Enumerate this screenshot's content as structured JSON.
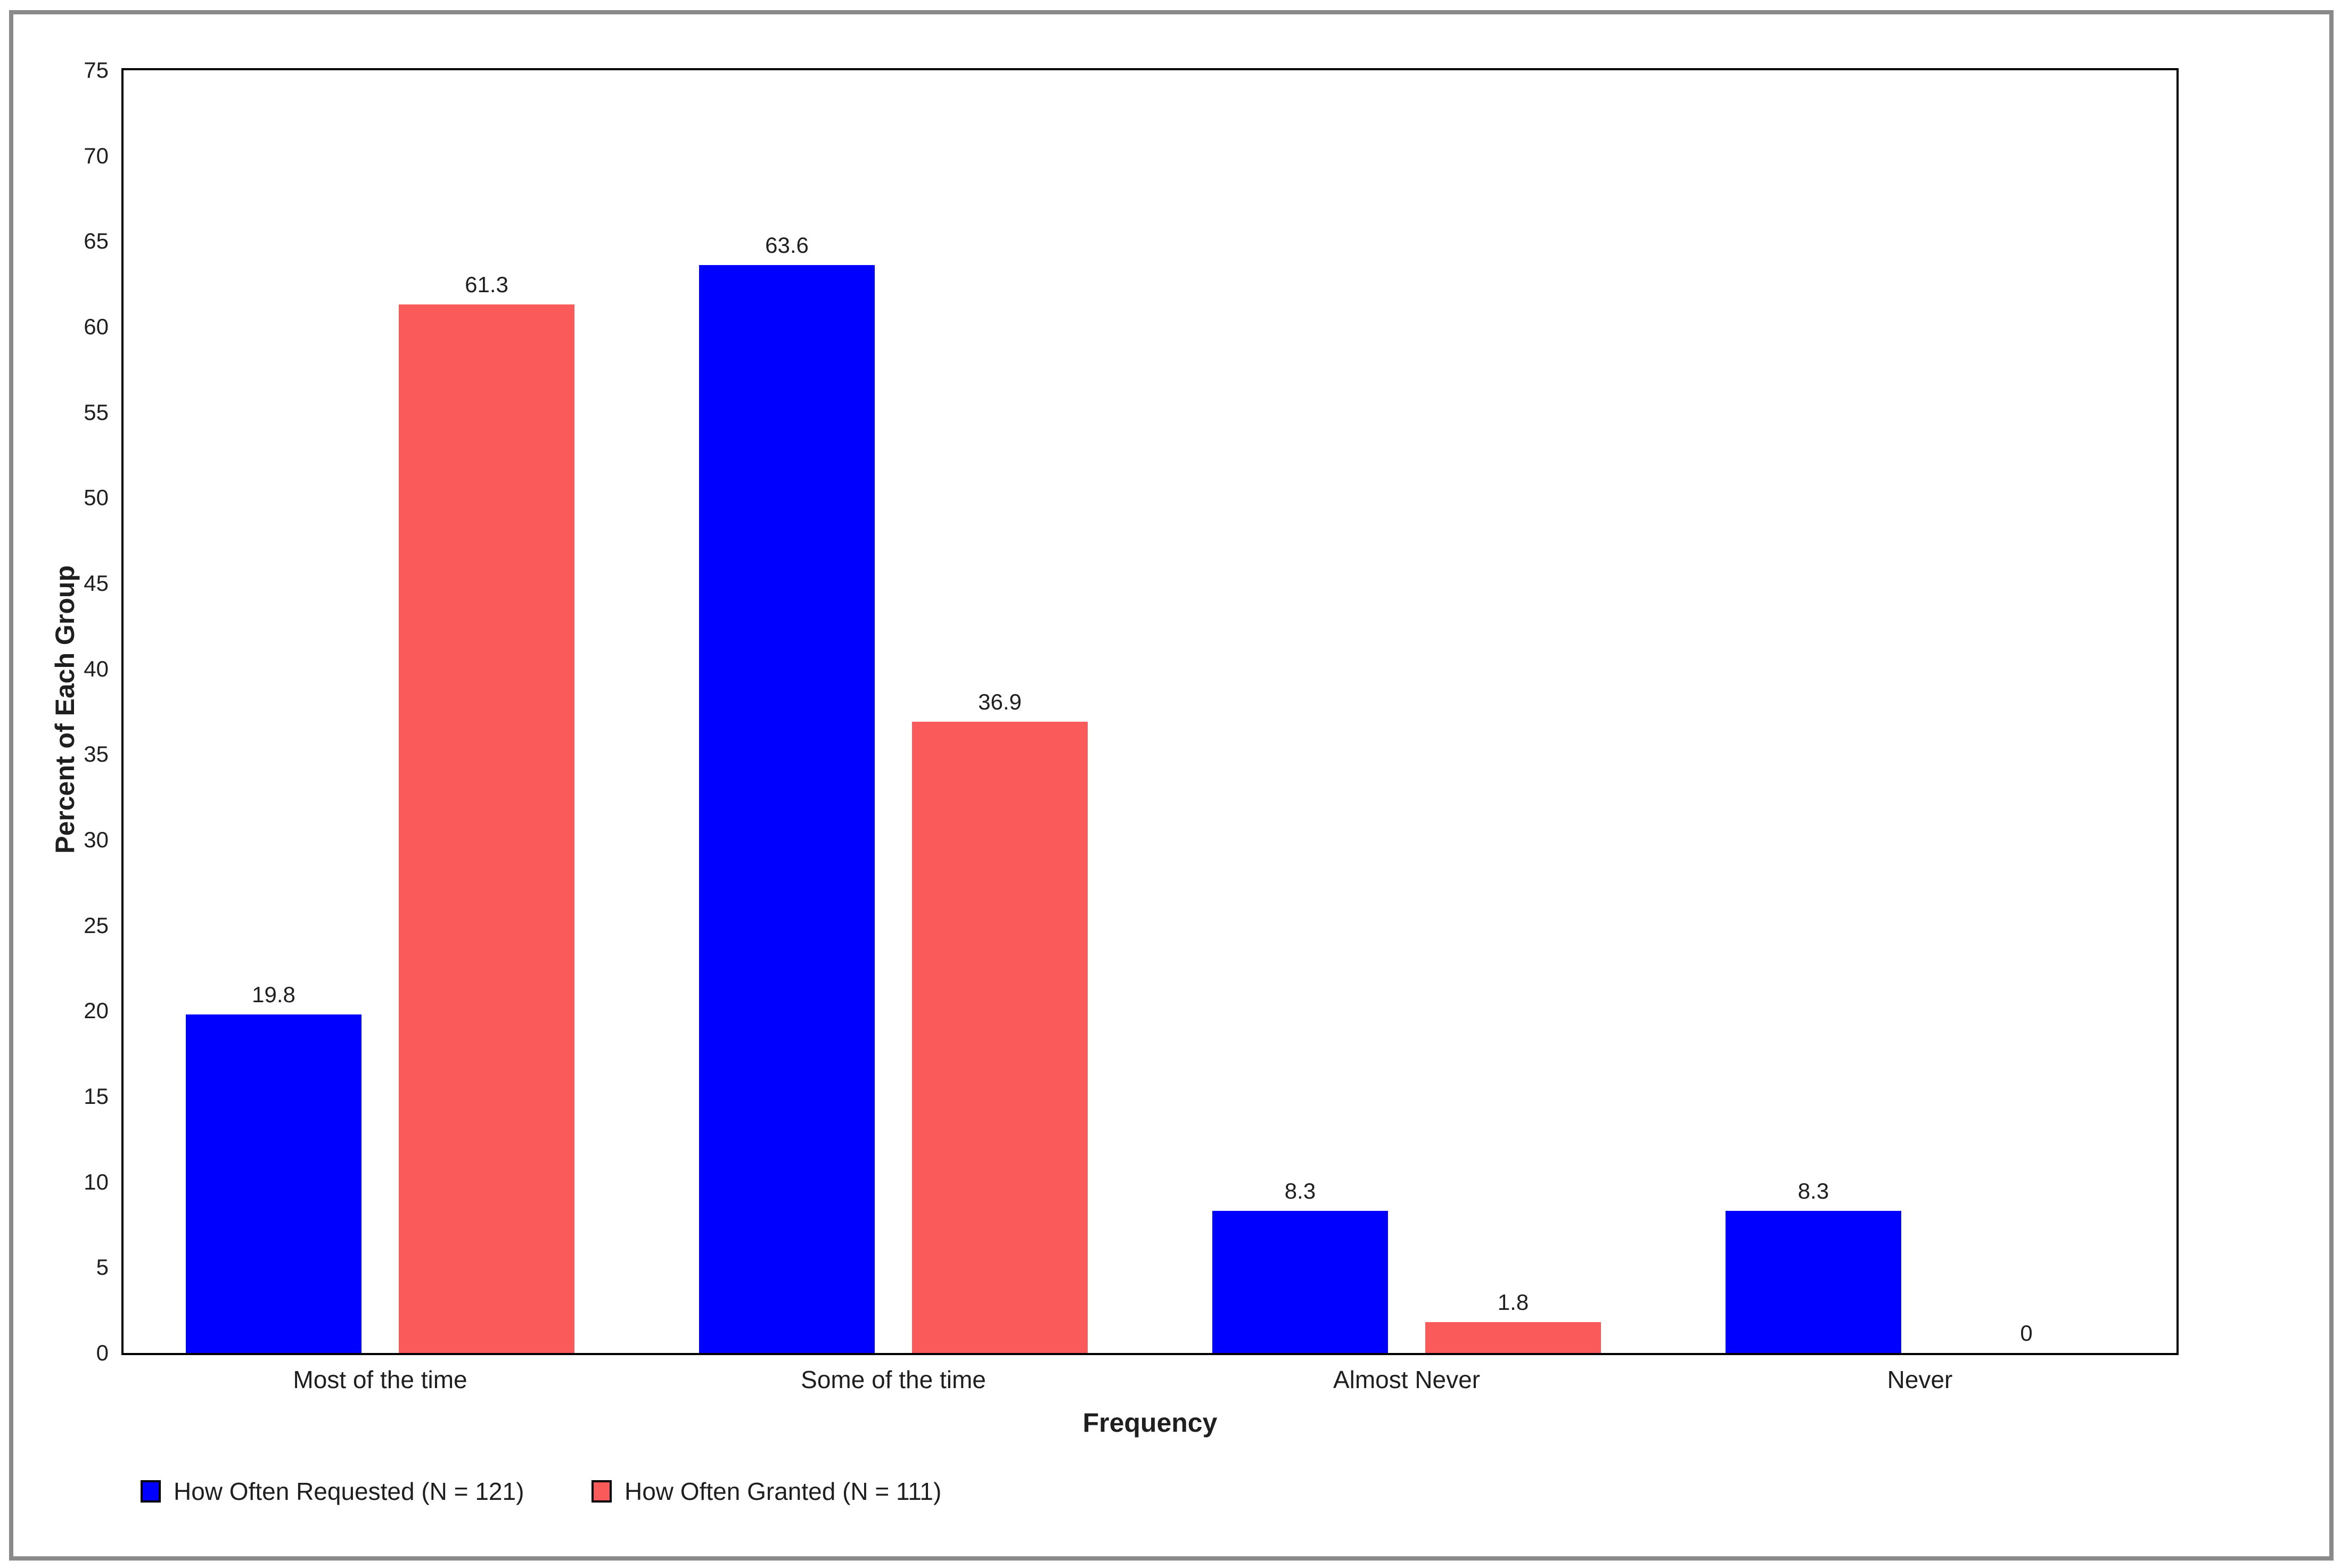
{
  "chart_data": {
    "type": "bar",
    "categories": [
      "Most of the time",
      "Some of the time",
      "Almost Never",
      "Never"
    ],
    "series": [
      {
        "name": "How Often Requested (N = 121)",
        "color": "#0000ff",
        "values": [
          19.8,
          63.6,
          8.3,
          8.3
        ],
        "value_labels": [
          "19.8",
          "63.6",
          "8.3",
          "8.3"
        ]
      },
      {
        "name": "How Often Granted (N = 111)",
        "color": "#fb5a5a",
        "values": [
          61.3,
          36.9,
          1.8,
          0
        ],
        "value_labels": [
          "61.3",
          "36.9",
          "1.8",
          "0"
        ]
      }
    ],
    "title": "",
    "xlabel": "Frequency",
    "ylabel": "Percent of Each Group",
    "ylim": [
      0,
      75
    ],
    "yticks": [
      0,
      5,
      10,
      15,
      20,
      25,
      30,
      35,
      40,
      45,
      50,
      55,
      60,
      65,
      70,
      75
    ],
    "grid": false,
    "legend_position": "bottom-left",
    "bar_value_labels_shown": true
  },
  "colors": {
    "background": "#ffffff",
    "plot_border": "#000000",
    "outer_frame": "#8a8a8a",
    "text": "#1f1f1f",
    "series_blue": "#0000ff",
    "series_red": "#fb5a5a"
  }
}
